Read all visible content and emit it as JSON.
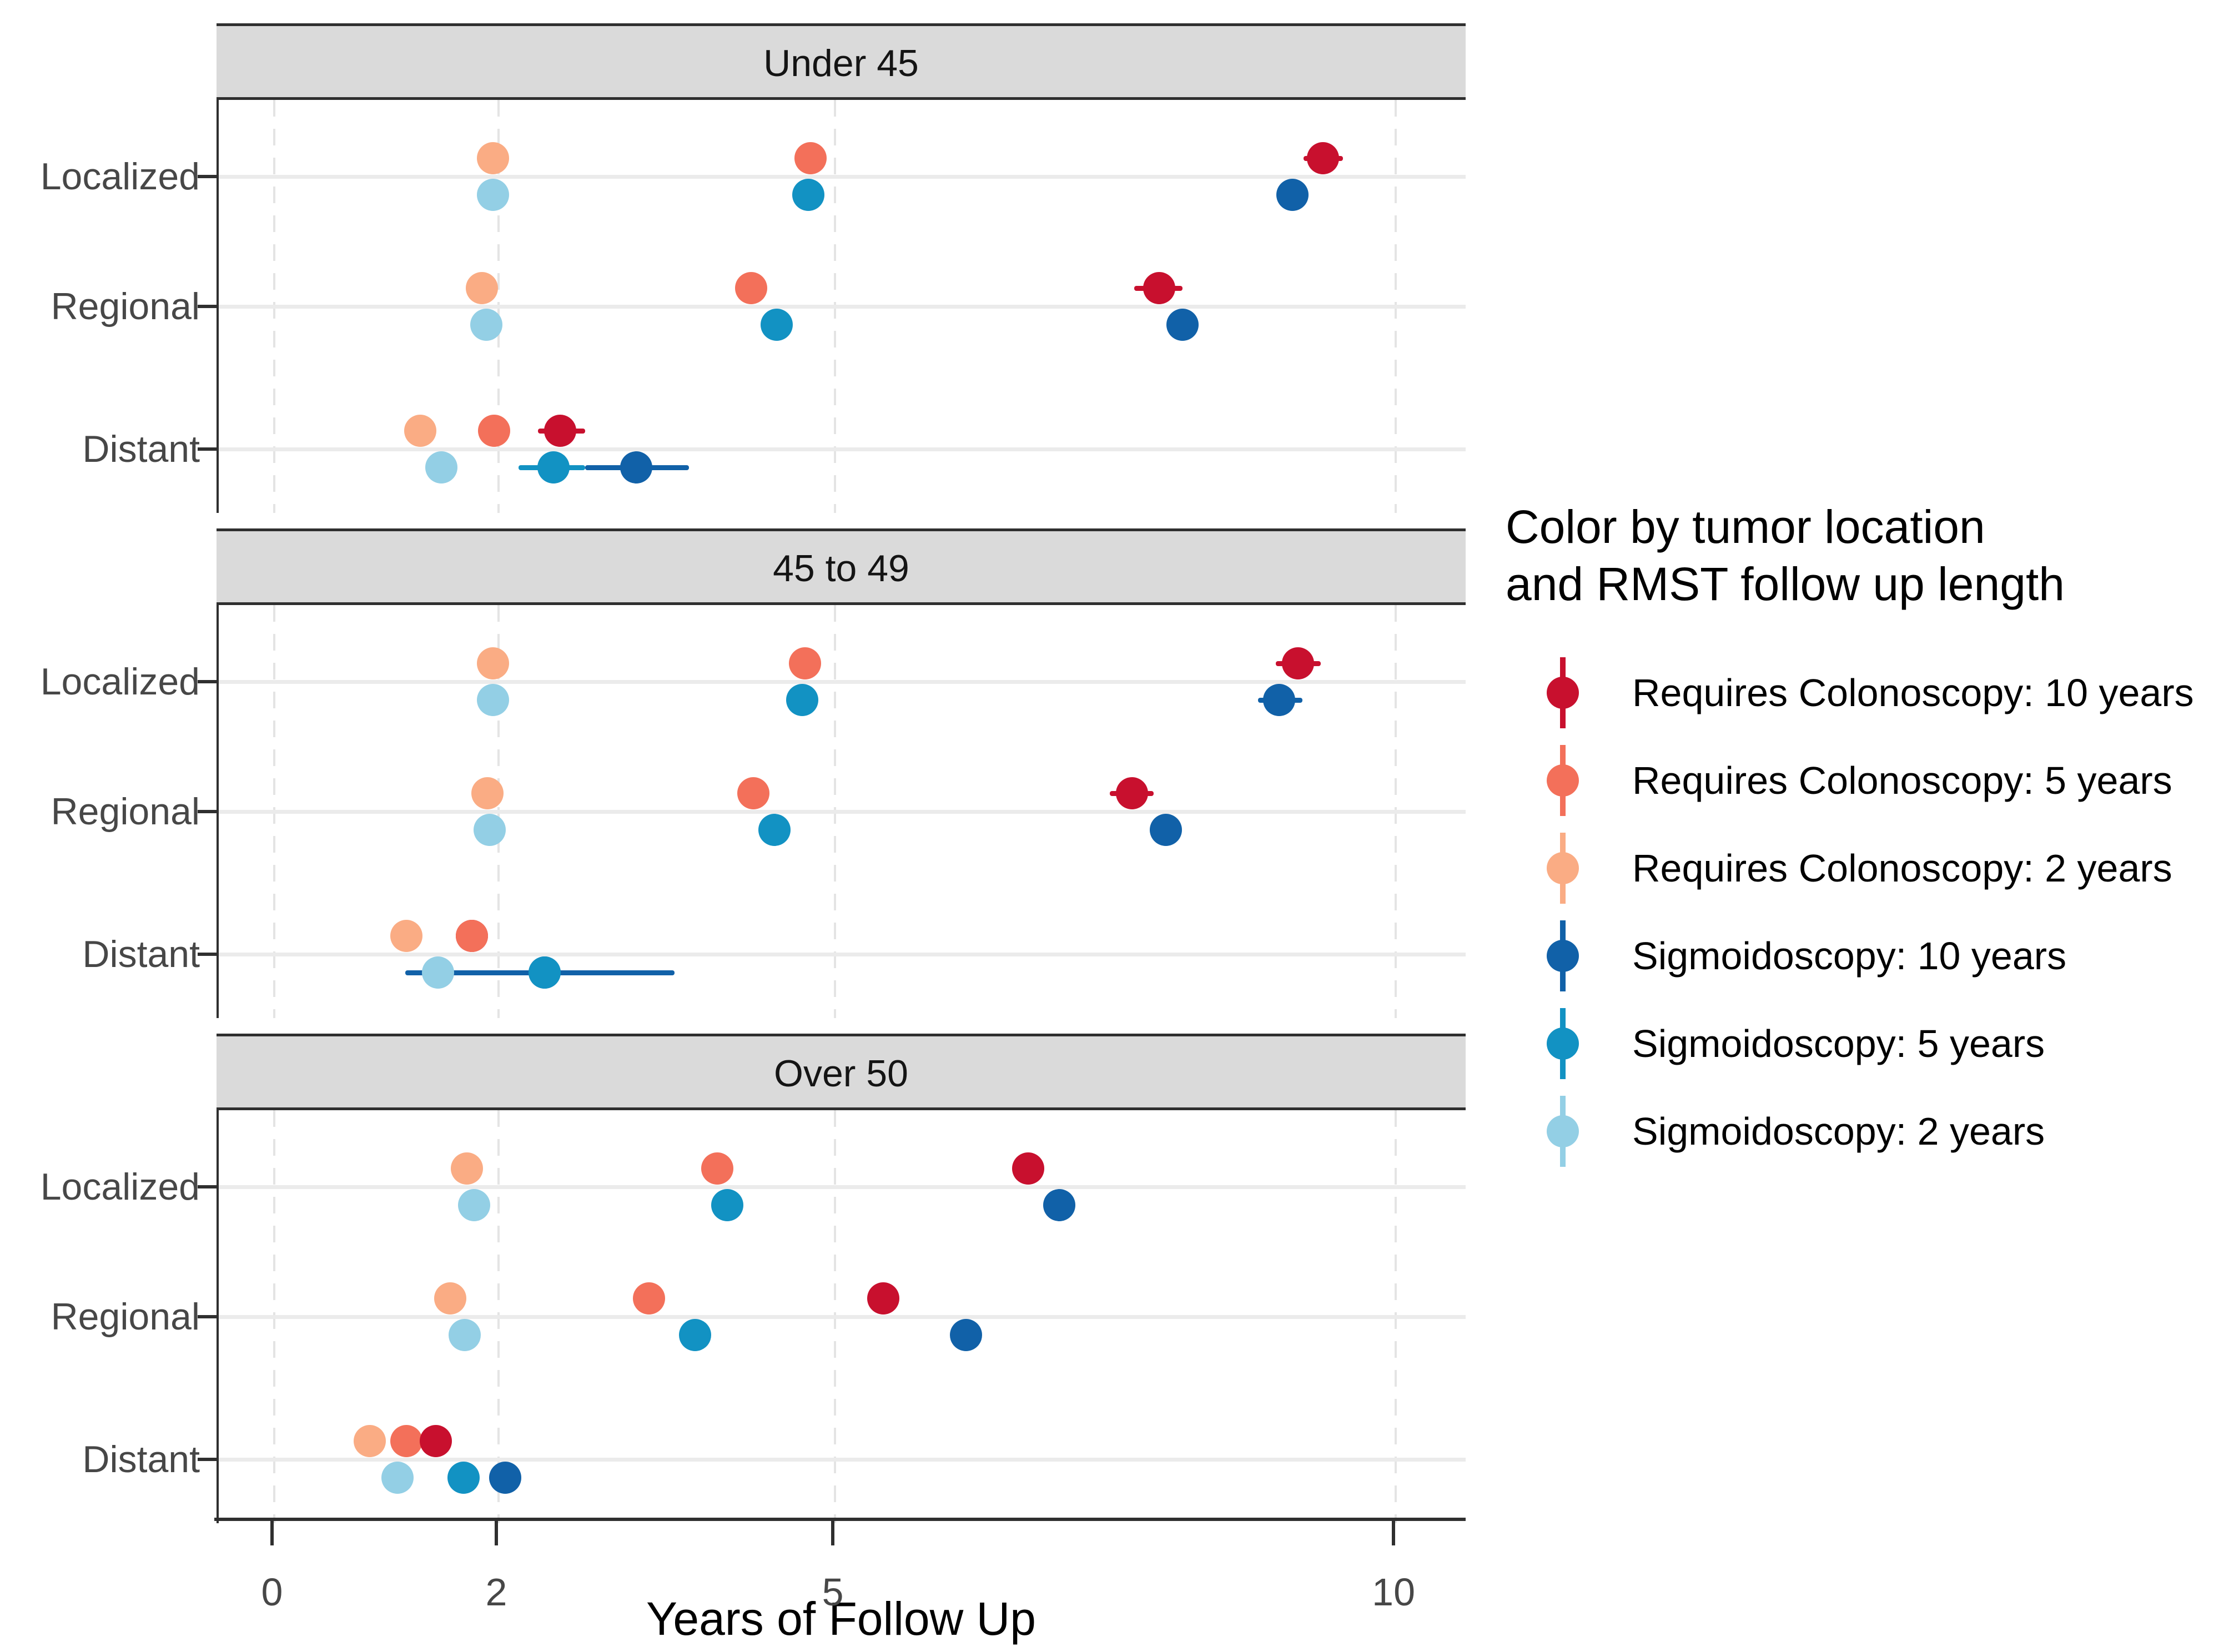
{
  "legend": {
    "title_lines": [
      "Color by tumor location",
      "and RMST follow up length"
    ]
  },
  "chart_data": {
    "type": "scatter",
    "subtype": "faceted-dotplot-with-error-bars",
    "xlabel": "Years of Follow Up",
    "x_ticks": [
      0,
      2,
      5,
      10
    ],
    "xlim": [
      -0.495,
      10.643
    ],
    "grid": "on",
    "legend_position": "right",
    "y_categories": [
      "Localized",
      "Regional",
      "Distant"
    ],
    "series": [
      {
        "id": "rc10",
        "label": "Requires Colonoscopy: 10 years",
        "color": "#C8102E",
        "dodge": "up"
      },
      {
        "id": "rc5",
        "label": "Requires Colonoscopy: 5 years",
        "color": "#F3705A",
        "dodge": "up"
      },
      {
        "id": "rc2",
        "label": "Requires Colonoscopy: 2 years",
        "color": "#FAAC84",
        "dodge": "up"
      },
      {
        "id": "sig10",
        "label": "Sigmoidoscopy: 10 years",
        "color": "#1161A8",
        "dodge": "down"
      },
      {
        "id": "sig5",
        "label": "Sigmoidoscopy: 5 years",
        "color": "#1292C3",
        "dodge": "down"
      },
      {
        "id": "sig2",
        "label": "Sigmoidoscopy: 2 years",
        "color": "#93CFE5",
        "dodge": "down"
      }
    ],
    "facets": [
      {
        "title": "Under 45",
        "rows": [
          {
            "category": "Localized",
            "points": [
              {
                "series": "rc2",
                "x": 1.95
              },
              {
                "series": "rc5",
                "x": 4.78
              },
              {
                "series": "rc10",
                "x": 9.35,
                "ci": [
                  9.18,
                  9.53
                ]
              },
              {
                "series": "sig2",
                "x": 1.95
              },
              {
                "series": "sig5",
                "x": 4.76
              },
              {
                "series": "sig10",
                "x": 9.08
              }
            ]
          },
          {
            "category": "Regional",
            "points": [
              {
                "series": "rc2",
                "x": 1.85
              },
              {
                "series": "rc5",
                "x": 4.25
              },
              {
                "series": "rc10",
                "x": 7.89,
                "ci": [
                  7.67,
                  8.1
                ]
              },
              {
                "series": "sig2",
                "x": 1.89
              },
              {
                "series": "sig5",
                "x": 4.48
              },
              {
                "series": "sig10",
                "x": 8.1
              }
            ]
          },
          {
            "category": "Distant",
            "points": [
              {
                "series": "rc2",
                "x": 1.3
              },
              {
                "series": "rc5",
                "x": 1.96
              },
              {
                "series": "rc10",
                "x": 2.55,
                "ci": [
                  2.35,
                  2.77
                ]
              },
              {
                "series": "sig2",
                "x": 1.49
              },
              {
                "series": "sig5",
                "x": 2.49,
                "ci": [
                  2.18,
                  2.77
                ]
              },
              {
                "series": "sig10",
                "x": 3.23,
                "ci": [
                  2.77,
                  3.7
                ]
              }
            ]
          }
        ]
      },
      {
        "title": "45 to 49",
        "rows": [
          {
            "category": "Localized",
            "points": [
              {
                "series": "rc2",
                "x": 1.95
              },
              {
                "series": "rc5",
                "x": 4.73
              },
              {
                "series": "rc10",
                "x": 9.13,
                "ci": [
                  8.93,
                  9.33
                ]
              },
              {
                "series": "sig2",
                "x": 1.95
              },
              {
                "series": "sig5",
                "x": 4.71
              },
              {
                "series": "sig10",
                "x": 8.96,
                "ci": [
                  8.77,
                  9.17
                ]
              }
            ]
          },
          {
            "category": "Regional",
            "points": [
              {
                "series": "rc2",
                "x": 1.9
              },
              {
                "series": "rc5",
                "x": 4.27
              },
              {
                "series": "rc10",
                "x": 7.65,
                "ci": [
                  7.45,
                  7.84
                ]
              },
              {
                "series": "sig2",
                "x": 1.92
              },
              {
                "series": "sig5",
                "x": 4.46
              },
              {
                "series": "sig10",
                "x": 7.95
              }
            ]
          },
          {
            "category": "Distant",
            "points": [
              {
                "series": "rc10",
                "x": 1.76
              },
              {
                "series": "rc2",
                "x": 1.18
              },
              {
                "series": "rc5",
                "x": 1.76
              },
              {
                "series": "sig10",
                "x": 2.41,
                "ci": [
                  1.17,
                  3.57
                ]
              },
              {
                "series": "sig2",
                "x": 1.46
              },
              {
                "series": "sig5",
                "x": 2.41
              }
            ]
          }
        ]
      },
      {
        "title": "Over 50",
        "rows": [
          {
            "category": "Localized",
            "points": [
              {
                "series": "rc2",
                "x": 1.72
              },
              {
                "series": "rc5",
                "x": 3.95
              },
              {
                "series": "rc10",
                "x": 6.72
              },
              {
                "series": "sig2",
                "x": 1.78
              },
              {
                "series": "sig5",
                "x": 4.04
              },
              {
                "series": "sig10",
                "x": 7.0
              }
            ]
          },
          {
            "category": "Regional",
            "points": [
              {
                "series": "rc2",
                "x": 1.57
              },
              {
                "series": "rc5",
                "x": 3.34
              },
              {
                "series": "rc10",
                "x": 5.43
              },
              {
                "series": "sig2",
                "x": 1.7
              },
              {
                "series": "sig5",
                "x": 3.75
              },
              {
                "series": "sig10",
                "x": 6.17
              }
            ]
          },
          {
            "category": "Distant",
            "points": [
              {
                "series": "rc2",
                "x": 0.85
              },
              {
                "series": "rc5",
                "x": 1.18
              },
              {
                "series": "rc10",
                "x": 1.44
              },
              {
                "series": "sig2",
                "x": 1.1
              },
              {
                "series": "sig5",
                "x": 1.69
              },
              {
                "series": "sig10",
                "x": 2.06
              }
            ]
          }
        ]
      }
    ]
  }
}
